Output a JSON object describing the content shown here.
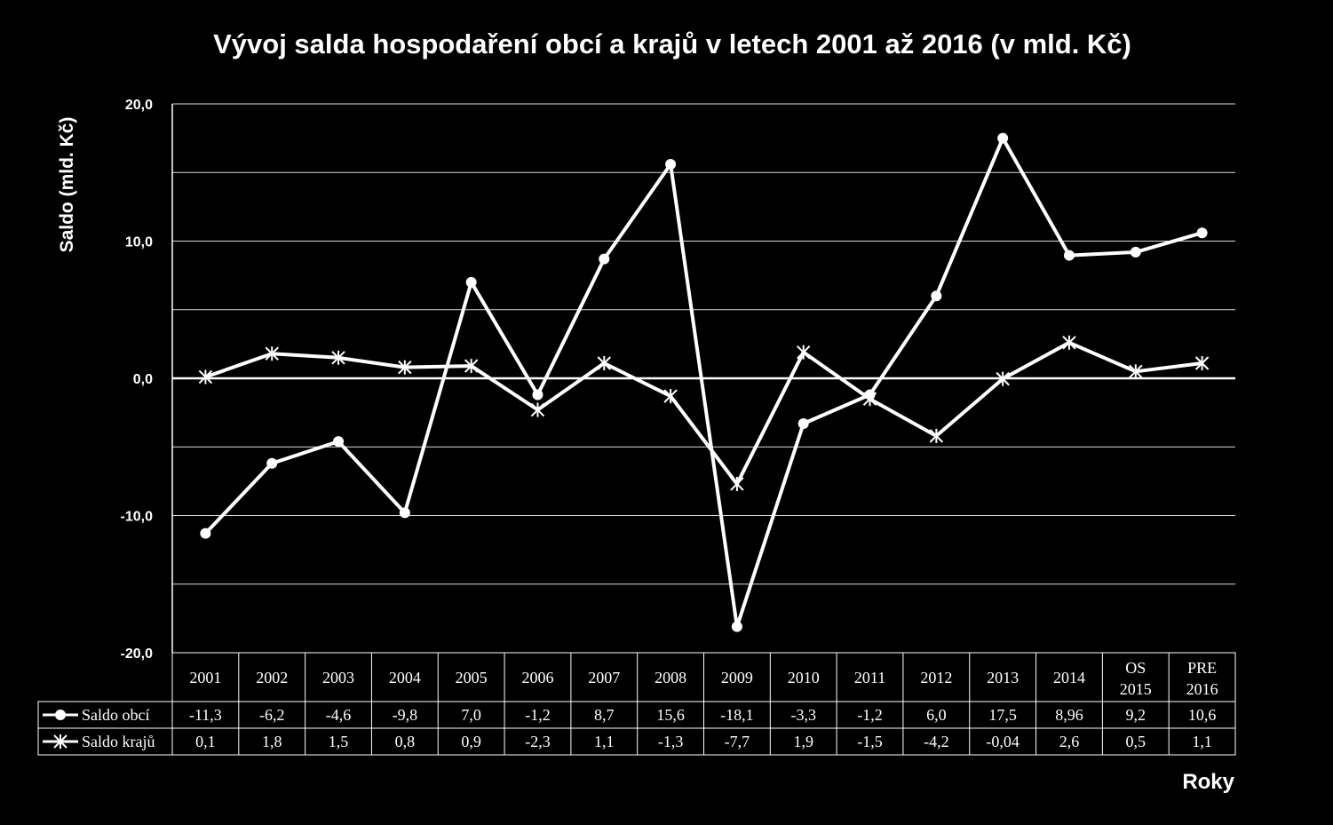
{
  "chart_data": {
    "type": "line",
    "title": "Vývoj salda hospodaření obcí a krajů v letech 2001 až 2016 (v mld. Kč)",
    "ylabel": "Saldo (mld. Kč)",
    "xlabel": "Roky",
    "ylim": [
      -20,
      20
    ],
    "yticks": [
      "-20,0",
      "-10,0",
      "0,0",
      "10,0",
      "20,0"
    ],
    "ytick_values": [
      -20,
      -10,
      0,
      10,
      20
    ],
    "grid": true,
    "legend_placement": "data table below chart",
    "categories": [
      "2001",
      "2002",
      "2003",
      "2004",
      "2005",
      "2006",
      "2007",
      "2008",
      "2009",
      "2010",
      "2011",
      "2012",
      "2013",
      "2014",
      "OS 2015",
      "PRE 2016"
    ],
    "series": [
      {
        "name": "Saldo obcí",
        "marker": "circle",
        "values": [
          -11.3,
          -6.2,
          -4.6,
          -9.8,
          7.0,
          -1.2,
          8.7,
          15.6,
          -18.1,
          -3.3,
          -1.2,
          6.0,
          17.5,
          8.96,
          9.2,
          10.6
        ],
        "labels": [
          "-11,3",
          "-6,2",
          "-4,6",
          "-9,8",
          "7,0",
          "-1,2",
          "8,7",
          "15,6",
          "-18,1",
          "-3,3",
          "-1,2",
          "6,0",
          "17,5",
          "8,96",
          "9,2",
          "10,6"
        ]
      },
      {
        "name": "Saldo krajů",
        "marker": "star",
        "values": [
          0.1,
          1.8,
          1.5,
          0.8,
          0.9,
          -2.3,
          1.1,
          -1.3,
          -7.7,
          1.9,
          -1.5,
          -4.2,
          -0.04,
          2.6,
          0.5,
          1.1
        ],
        "labels": [
          "0,1",
          "1,8",
          "1,5",
          "0,8",
          "0,9",
          "-2,3",
          "1,1",
          "-1,3",
          "-7,7",
          "1,9",
          "-1,5",
          "-4,2",
          "-0,04",
          "2,6",
          "0,5",
          "1,1"
        ]
      }
    ],
    "colors": {
      "background": "#000000",
      "foreground": "#ffffff",
      "grid": "#d9d9d9"
    }
  }
}
